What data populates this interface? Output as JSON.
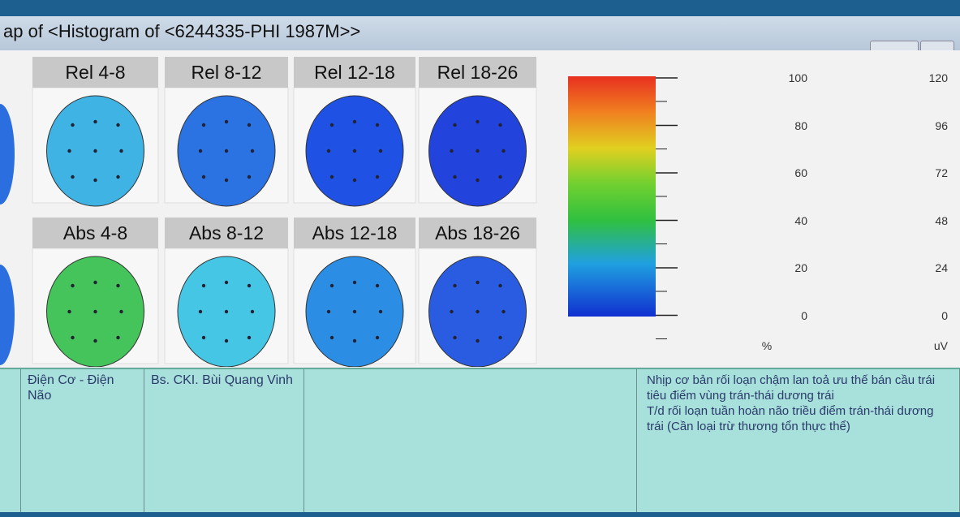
{
  "window": {
    "title": "ap of <Histogram of <6244335-PHI 1987M>>"
  },
  "maps": {
    "rel": [
      "Rel 4-8",
      "Rel 8-12",
      "Rel 12-18",
      "Rel 18-26"
    ],
    "abs": [
      "Abs 4-8",
      "Abs 8-12",
      "Abs 12-18",
      "Abs 18-26"
    ]
  },
  "scale": {
    "percent": [
      100,
      80,
      60,
      40,
      20,
      0
    ],
    "percent_unit": "%",
    "uv": [
      120,
      96,
      72,
      48,
      24,
      0
    ],
    "uv_unit": "uV"
  },
  "record": {
    "department": "Điện Cơ - Điện Não",
    "doctor": "Bs. CKI. Bùi Quang Vinh",
    "conclusion": [
      "Nhịp cơ bản rối loạn chậm lan toả ưu thế bán cầu trái tiêu điểm vùng trán-thái dương trái",
      "T/d rối loạn tuần hoàn não triều điểm trán-thái dương trái (Cần loại trừ thương tổn thực thể)"
    ]
  }
}
